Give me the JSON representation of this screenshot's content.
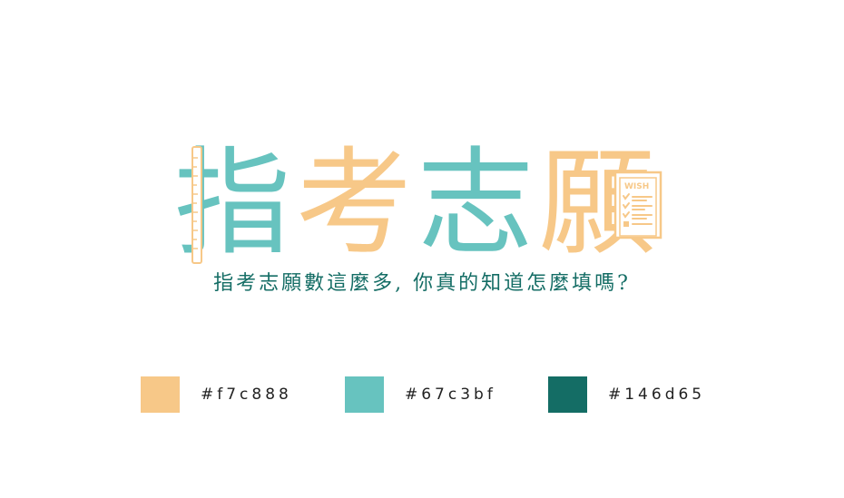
{
  "logo": {
    "chars": [
      "指",
      "考",
      "志",
      "願"
    ],
    "char_colors": [
      "#67c3bf",
      "#f7c888",
      "#67c3bf",
      "#f7c888"
    ],
    "wish_badge": "WISH",
    "icons": [
      "ruler-icon",
      "wish-checklist-icon"
    ]
  },
  "slogan": {
    "text": "指考志願數這麼多, 你真的知道怎麼填嗎?",
    "color": "#146d65"
  },
  "palette": [
    {
      "hex": "#f7c888",
      "label": "#f7c888"
    },
    {
      "hex": "#67c3bf",
      "label": "#67c3bf"
    },
    {
      "hex": "#146d65",
      "label": "#146d65"
    }
  ]
}
